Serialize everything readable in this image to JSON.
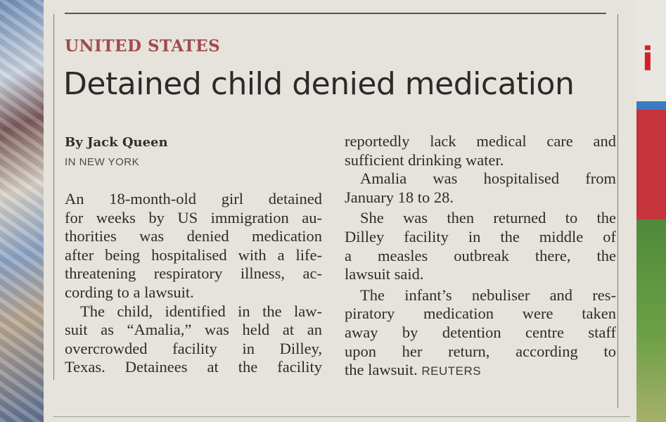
{
  "article": {
    "section": "UNITED STATES",
    "headline": "Detained child denied medication",
    "byline": "By Jack Queen",
    "dateline": "IN NEW YORK",
    "column1": [
      "An 18-month-old girl detained",
      "for weeks by US immigration au-",
      "thorities was denied medication",
      "after being hospitalised with a life-",
      "threatening respiratory illness, ac-",
      "cording to a lawsuit.",
      "The child, identified in the law-",
      "suit as “Amalia,” was held at an",
      "overcrowded facility in Dilley,",
      "Texas. Detainees at the facility"
    ],
    "column2": [
      "reportedly lack medical care and",
      "sufficient drinking water.",
      "Amalia was hospitalised from",
      "January 18 to 28.",
      "She was then returned to the",
      "Dilley facility in the middle of",
      "a measles outbreak there, the",
      "lawsuit said.",
      "The infant’s nebuliser and res-",
      "piratory medication were taken",
      "away by detention centre staff",
      "upon her return, according to",
      "the lawsuit."
    ],
    "wire_credit": "REUTERS"
  },
  "colors": {
    "section_red": "#a14b4d",
    "paper": "#e6e3dc",
    "ink": "#2c2c2c"
  }
}
